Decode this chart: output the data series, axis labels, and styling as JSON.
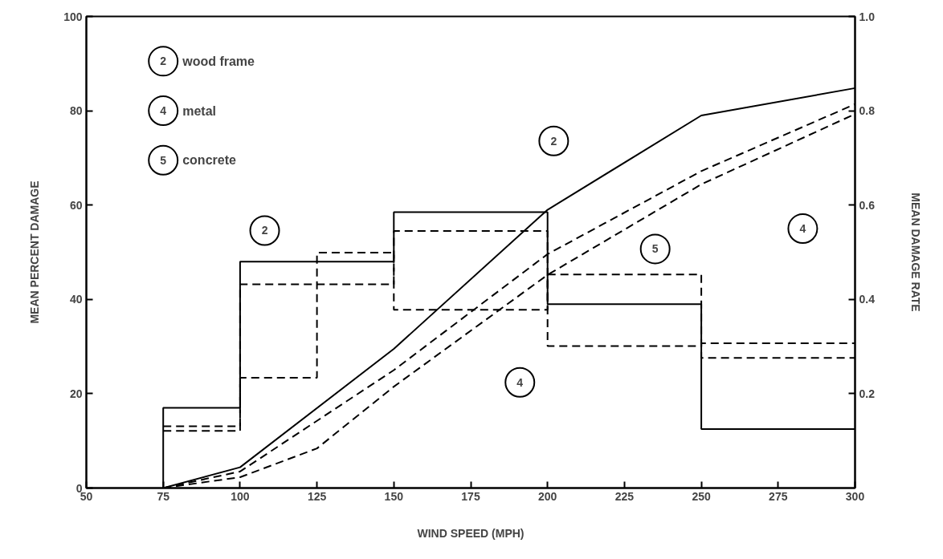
{
  "chart_data": {
    "type": "line",
    "xlabel": "WIND SPEED (MPH)",
    "ylabel": "MEAN PERCENT DAMAGE",
    "y2label": "MEAN DAMAGE RATE",
    "xlim": [
      50,
      300
    ],
    "xticks": [
      50,
      75,
      100,
      125,
      150,
      175,
      200,
      225,
      250,
      275,
      300
    ],
    "ylim": [
      0,
      100
    ],
    "yticks": [
      0,
      20,
      40,
      60,
      80,
      100
    ],
    "y2lim": [
      0,
      1
    ],
    "y2ticks": [
      0.2,
      0.4,
      0.6,
      0.8,
      {
        "value": 1,
        "label": "1.0"
      }
    ],
    "grid": false,
    "series": [
      {
        "color": "#000000",
        "line_style": "solid",
        "x": [
          75,
          100,
          150,
          200,
          250,
          300
        ],
        "values": [
          0,
          4.4,
          29.5,
          59,
          79,
          84.8
        ]
      },
      {
        "color": "#000000",
        "line_style": "dashed",
        "x": [
          75,
          100,
          125,
          150,
          200,
          250,
          300
        ],
        "values": [
          0,
          2.3,
          8.4,
          21.5,
          45.2,
          64.4,
          79.3
        ]
      },
      {
        "color": "#000000",
        "line_style": "dashed",
        "x": [
          75,
          100,
          150,
          200,
          250,
          300
        ],
        "values": [
          0,
          3.5,
          25,
          49.6,
          67.2,
          81.4
        ]
      },
      {
        "type": "step",
        "axis": "y2",
        "color": "#000000",
        "line_style": "solid",
        "x": [
          75,
          75,
          100,
          125,
          150,
          200,
          250,
          300
        ],
        "values": [
          0,
          0.17,
          0.48,
          0.48,
          0.585,
          0.39,
          0.125,
          0.125
        ]
      },
      {
        "type": "step",
        "axis": "y2",
        "color": "#000000",
        "line_style": "dashed",
        "x": [
          75,
          100,
          125,
          150,
          200,
          250,
          300
        ],
        "values": [
          0.131,
          0.432,
          0.432,
          0.545,
          0.301,
          0.307,
          0.307
        ]
      },
      {
        "type": "step",
        "axis": "y2",
        "color": "#000000",
        "line_style": "dashed",
        "x": [
          75,
          100,
          125,
          150,
          200,
          250,
          300
        ],
        "values": [
          0.121,
          0.234,
          0.499,
          0.378,
          0.453,
          0.276,
          0.276
        ]
      }
    ],
    "annotations": [
      "2 wood frame",
      "4 metal",
      "5 concrete",
      {
        "text": "2",
        "x": 108,
        "y": 54.6
      },
      {
        "text": "2",
        "x": 202,
        "y": 73.6
      },
      {
        "text": "4",
        "x": 191,
        "y": 22.4
      },
      {
        "text": "5",
        "x": 235,
        "y": 50.7
      },
      {
        "text": "4",
        "x": 283,
        "y": 55
      }
    ]
  }
}
